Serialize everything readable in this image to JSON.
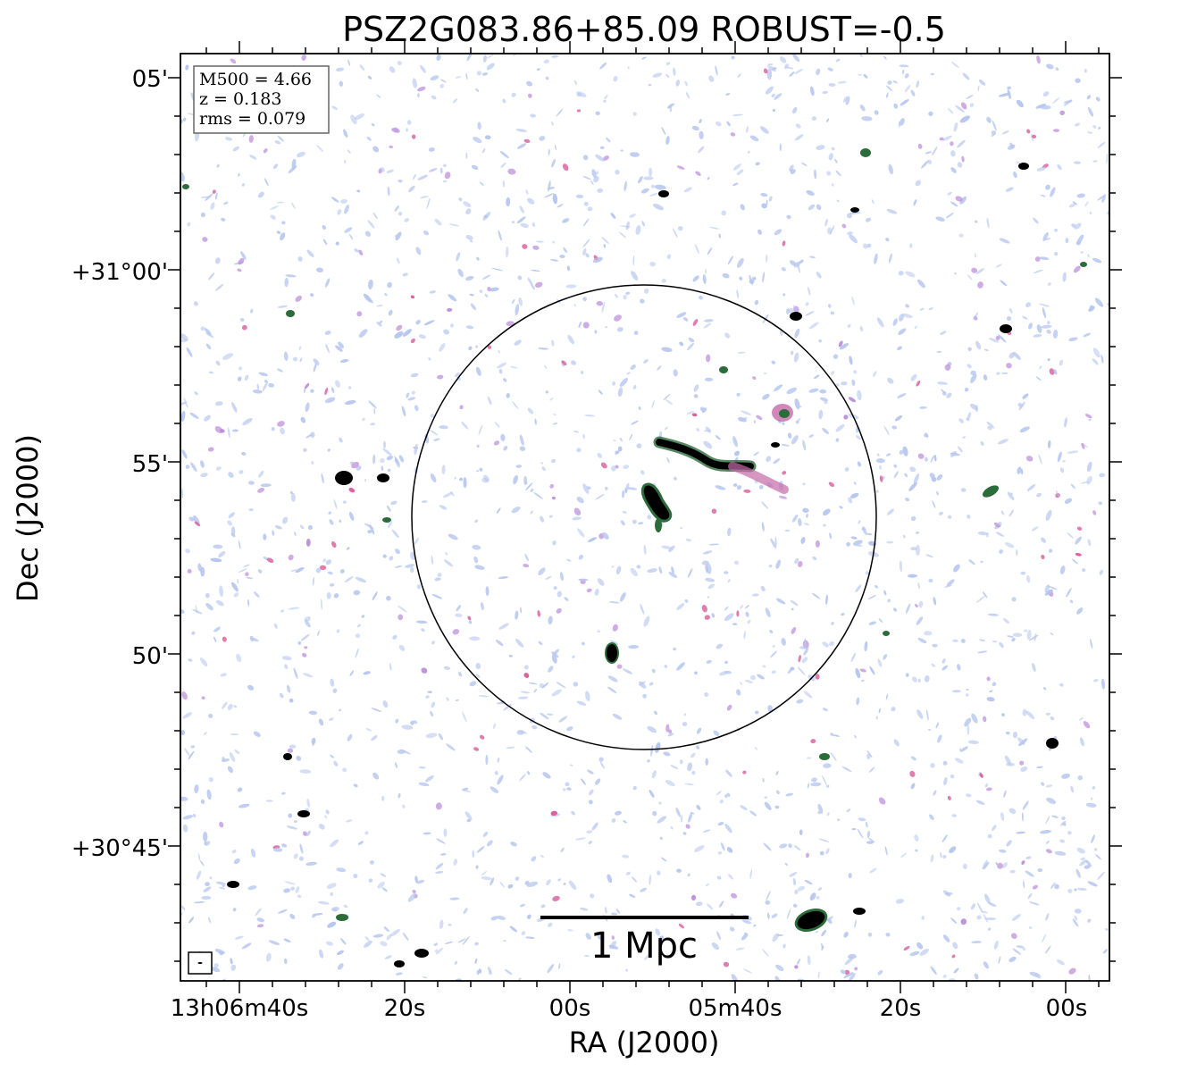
{
  "title": "PSZ2G083.86+85.09 ROBUST=-0.5",
  "axes": {
    "xlabel": "RA (J2000)",
    "ylabel": "Dec (J2000)",
    "xticks": [
      "13h06m40s",
      "20s",
      "00s",
      "05m40s",
      "20s",
      "00s"
    ],
    "yticks": [
      "05'",
      "+31°00'",
      "55'",
      "50'",
      "+30°45'"
    ]
  },
  "info_box": {
    "line1": "M500 = 4.66",
    "line2": "z = 0.183",
    "line3": "rms = 0.079"
  },
  "scale_bar": {
    "label": "1 Mpc"
  },
  "colors": {
    "noise_blue": "#b7c7ee",
    "noise_purple": "#b98ad8",
    "noise_pink": "#d65d9a",
    "source_core": "#000000",
    "source_edge": "#2c6b3a"
  }
}
